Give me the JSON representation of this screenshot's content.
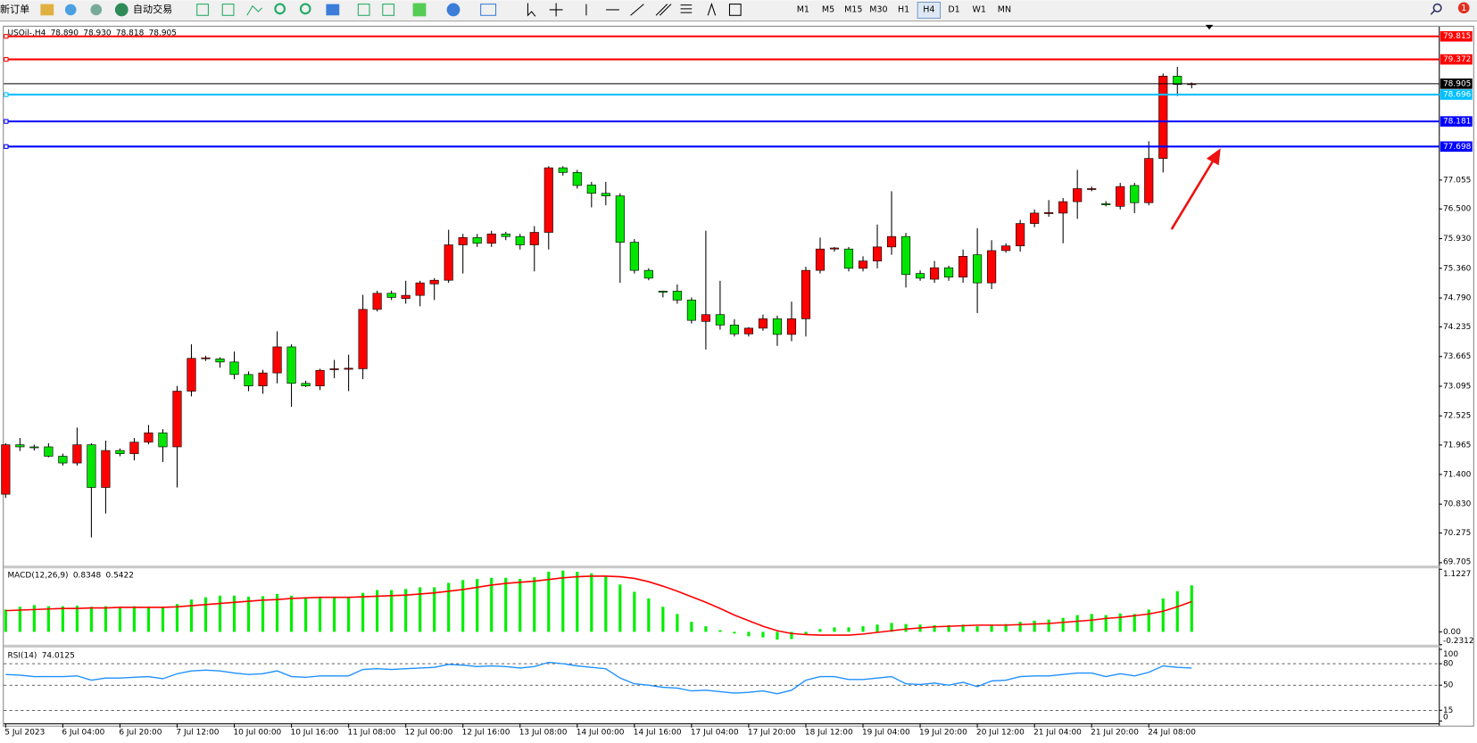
{
  "toolbar": {
    "buttons": [
      "新订单",
      "自动交易"
    ],
    "timeframes": [
      "M1",
      "M5",
      "M15",
      "M30",
      "H1",
      "H4",
      "D1",
      "W1",
      "MN"
    ],
    "active_timeframe": "H4",
    "badge": 1
  },
  "chart_data": [
    {
      "type": "candlestick",
      "title": "USOil-,H4",
      "header_values": [
        {
          "value": 78.89,
          "label": "78.890"
        },
        {
          "value": 78.93,
          "label": "78.930"
        },
        78.818,
        78.905
      ],
      "categories": [
        "5 Jul 2023",
        null,
        null,
        null,
        "6 Jul 04:00",
        null,
        null,
        null,
        "6 Jul 20:00",
        null,
        null,
        null,
        "7 Jul 12:00",
        null,
        null,
        null,
        "10 Jul 00:00",
        null,
        null,
        null,
        "10 Jul 16:00",
        null,
        null,
        null,
        "11 Jul 08:00",
        null,
        null,
        null,
        "12 Jul 00:00",
        null,
        null,
        null,
        "12 Jul 16:00",
        null,
        null,
        null,
        "13 Jul 08:00",
        null,
        null,
        null,
        "14 Jul 00:00",
        null,
        null,
        null,
        "14 Jul 16:00",
        null,
        null,
        null,
        "17 Jul 04:00",
        null,
        null,
        null,
        "17 Jul 20:00",
        null,
        null,
        null,
        "18 Jul 12:00",
        null,
        null,
        null,
        "19 Jul 04:00",
        null,
        null,
        null,
        "19 Jul 20:00",
        null,
        null,
        null,
        "20 Jul 12:00",
        null,
        null,
        null,
        "21 Jul 04:00",
        null,
        null,
        null,
        "21 Jul 20:00",
        null,
        null,
        null,
        "24 Jul 08:00",
        null,
        null,
        null
      ],
      "open": [
        71.02,
        71.97,
        71.93,
        71.93,
        71.75,
        71.62,
        71.97,
        71.15,
        71.86,
        71.8,
        72.02,
        72.2,
        71.93,
        73.0,
        73.63,
        73.62,
        73.56,
        73.32,
        73.1,
        73.35,
        73.85,
        73.15,
        73.1,
        73.42,
        73.42,
        73.43,
        74.57,
        74.88,
        74.78,
        74.84,
        75.06,
        75.13,
        75.81,
        75.95,
        75.84,
        76.02,
        75.97,
        75.81,
        76.05,
        77.29,
        77.2,
        76.96,
        76.8,
        76.75,
        75.86,
        75.32,
        74.92,
        74.92,
        74.75,
        74.34,
        74.47,
        74.27,
        74.1,
        74.21,
        74.39,
        74.09,
        74.39,
        75.32,
        75.73,
        75.73,
        75.36,
        75.5,
        75.77,
        75.97,
        75.26,
        75.15,
        75.37,
        75.19,
        75.62,
        75.08,
        75.7,
        75.79,
        76.22,
        76.41,
        76.42,
        76.64,
        76.88,
        76.6,
        76.55,
        76.95,
        76.62,
        77.47,
        79.05,
        78.89
      ],
      "high": [
        72.0,
        72.1,
        71.97,
        72.0,
        71.8,
        72.3,
        72.0,
        72.05,
        71.9,
        72.1,
        72.35,
        72.27,
        73.1,
        73.9,
        73.68,
        73.65,
        73.76,
        73.38,
        73.41,
        74.15,
        73.9,
        73.2,
        73.43,
        73.6,
        73.7,
        74.85,
        74.93,
        74.93,
        75.12,
        75.12,
        75.17,
        76.1,
        76.02,
        76.02,
        76.08,
        76.06,
        76.02,
        76.17,
        77.32,
        77.32,
        77.25,
        77.02,
        77.02,
        76.8,
        75.92,
        75.36,
        74.93,
        75.05,
        74.8,
        76.08,
        75.12,
        74.38,
        74.23,
        74.47,
        74.45,
        74.72,
        75.39,
        75.95,
        75.77,
        75.77,
        75.59,
        76.2,
        76.84,
        76.04,
        75.32,
        75.5,
        75.41,
        75.72,
        76.13,
        75.9,
        75.84,
        76.29,
        76.49,
        76.67,
        76.71,
        77.25,
        76.93,
        76.65,
        77.0,
        77.0,
        77.8,
        79.1,
        79.23,
        78.93
      ],
      "low": [
        70.95,
        71.85,
        71.86,
        71.73,
        71.57,
        71.57,
        70.19,
        70.65,
        71.75,
        71.67,
        71.98,
        71.64,
        71.15,
        72.9,
        73.58,
        73.45,
        73.23,
        73.0,
        72.95,
        73.15,
        72.7,
        73.08,
        73.02,
        73.25,
        73.0,
        73.23,
        74.53,
        74.75,
        74.68,
        74.63,
        74.75,
        75.08,
        75.26,
        75.77,
        75.77,
        75.9,
        75.72,
        75.3,
        75.72,
        77.14,
        76.89,
        76.53,
        76.57,
        75.08,
        75.26,
        75.13,
        74.8,
        74.68,
        74.3,
        73.8,
        74.18,
        74.05,
        74.05,
        74.16,
        73.87,
        73.96,
        74.05,
        75.26,
        75.68,
        75.3,
        75.3,
        75.36,
        75.62,
        74.99,
        75.12,
        75.08,
        75.12,
        75.08,
        74.5,
        74.96,
        75.66,
        75.68,
        76.15,
        76.35,
        75.84,
        76.31,
        76.84,
        76.55,
        76.49,
        76.42,
        76.57,
        77.2,
        78.67,
        78.818
      ],
      "close": [
        71.97,
        71.93,
        71.92,
        71.75,
        71.62,
        71.97,
        71.15,
        71.86,
        71.8,
        72.02,
        72.2,
        71.93,
        73.0,
        73.63,
        73.64,
        73.56,
        73.32,
        73.1,
        73.35,
        73.85,
        73.15,
        73.1,
        73.4,
        73.43,
        73.44,
        74.57,
        74.88,
        74.8,
        74.84,
        75.08,
        75.13,
        75.81,
        75.95,
        75.84,
        76.02,
        75.97,
        75.81,
        76.05,
        77.29,
        77.2,
        76.95,
        76.8,
        76.75,
        75.86,
        75.32,
        75.17,
        74.9,
        74.75,
        74.36,
        74.47,
        74.27,
        74.1,
        74.21,
        74.39,
        74.09,
        74.39,
        75.32,
        75.73,
        75.75,
        75.36,
        75.5,
        75.77,
        75.97,
        75.24,
        75.17,
        75.37,
        75.19,
        75.59,
        75.08,
        75.7,
        75.79,
        76.22,
        76.42,
        76.43,
        76.64,
        76.89,
        76.89,
        76.58,
        76.93,
        76.62,
        77.47,
        79.05,
        78.89,
        78.905
      ],
      "up_color": "#ff0000",
      "down_color": "#00e600",
      "ylim": [
        69.65,
        80.0
      ],
      "yticks": [
        77.055,
        {
          "value": 76.5,
          "label": "76.500"
        },
        {
          "value": 75.93,
          "label": "75.930"
        },
        {
          "value": 75.36,
          "label": "75.360"
        },
        {
          "value": 74.79,
          "label": "74.790"
        },
        74.235,
        73.665,
        73.095,
        72.525,
        71.965,
        {
          "value": 71.4,
          "label": "71.400"
        },
        {
          "value": 70.83,
          "label": "70.830"
        },
        70.275,
        69.705
      ],
      "grid": false,
      "levels": [
        {
          "value": 79.815,
          "color": "#ff0000"
        },
        {
          "value": 79.372,
          "color": "#ff0000"
        },
        {
          "value": 78.905,
          "color": "#000000"
        },
        {
          "value": 78.696,
          "color": "#00bfff"
        },
        {
          "value": 78.181,
          "color": "#0000ff"
        },
        {
          "value": 77.698,
          "color": "#0000ff"
        }
      ]
    },
    {
      "type": "macd",
      "title": "MACD(12,26,9)",
      "title_values": [
        0.8348,
        0.5422
      ],
      "histogram": {
        "color": "#00ee00",
        "values": [
          0.4,
          0.45,
          0.48,
          0.46,
          0.46,
          0.47,
          0.45,
          0.46,
          0.45,
          0.46,
          0.45,
          0.45,
          0.5,
          0.58,
          0.62,
          0.65,
          0.65,
          0.63,
          0.64,
          0.68,
          0.65,
          0.6,
          0.62,
          0.62,
          0.62,
          0.7,
          0.75,
          0.75,
          0.77,
          0.8,
          0.8,
          0.88,
          0.93,
          0.95,
          0.97,
          0.97,
          0.95,
          0.98,
          1.08,
          1.1,
          1.08,
          1.05,
          1.0,
          0.85,
          0.72,
          0.6,
          0.45,
          0.32,
          0.18,
          0.1,
          0.03,
          -0.03,
          -0.08,
          -0.1,
          -0.14,
          -0.13,
          -0.05,
          0.05,
          0.08,
          0.08,
          0.1,
          0.13,
          0.16,
          0.14,
          0.13,
          0.12,
          0.12,
          0.13,
          0.1,
          0.12,
          0.14,
          0.18,
          0.2,
          0.22,
          0.25,
          0.3,
          0.32,
          0.3,
          0.33,
          0.32,
          0.4,
          0.6,
          0.73,
          0.8348
        ]
      },
      "signal": {
        "color": "#ff0000",
        "values": [
          0.38,
          0.39,
          0.4,
          0.41,
          0.42,
          0.42,
          0.43,
          0.43,
          0.44,
          0.44,
          0.44,
          0.44,
          0.45,
          0.47,
          0.49,
          0.51,
          0.53,
          0.55,
          0.57,
          0.58,
          0.6,
          0.61,
          0.62,
          0.62,
          0.62,
          0.63,
          0.64,
          0.65,
          0.66,
          0.68,
          0.7,
          0.73,
          0.76,
          0.8,
          0.84,
          0.87,
          0.89,
          0.91,
          0.94,
          0.97,
          0.99,
          1.0,
          1.0,
          0.99,
          0.96,
          0.9,
          0.82,
          0.73,
          0.63,
          0.53,
          0.42,
          0.3,
          0.2,
          0.1,
          0.02,
          -0.03,
          -0.05,
          -0.06,
          -0.06,
          -0.06,
          -0.04,
          -0.01,
          0.02,
          0.05,
          0.07,
          0.09,
          0.1,
          0.11,
          0.12,
          0.12,
          0.12,
          0.13,
          0.14,
          0.15,
          0.17,
          0.19,
          0.21,
          0.24,
          0.26,
          0.29,
          0.32,
          0.37,
          0.45,
          0.5422
        ]
      },
      "ylim": [
        -0.2312,
        1.1227
      ],
      "yticks": [
        1.1227,
        {
          "value": 0,
          "label": "0.00"
        },
        -0.2312
      ]
    },
    {
      "type": "rsi",
      "title": "RSI(14)",
      "title_value": 74.0125,
      "color": "#1e90ff",
      "values": [
        65,
        64,
        62,
        62,
        62,
        63,
        57,
        60,
        60,
        61,
        62,
        59,
        66,
        70,
        71,
        70,
        67,
        65,
        66,
        70,
        62,
        61,
        63,
        63,
        63,
        72,
        73,
        72,
        73,
        74,
        75,
        79,
        78,
        76,
        77,
        76,
        74,
        76,
        82,
        80,
        77,
        75,
        73,
        60,
        52,
        50,
        47,
        46,
        42,
        43,
        41,
        39,
        40,
        42,
        38,
        43,
        57,
        62,
        62,
        58,
        58,
        60,
        62,
        52,
        51,
        53,
        50,
        54,
        48,
        56,
        57,
        62,
        63,
        63,
        65,
        67,
        67,
        62,
        66,
        63,
        68,
        77,
        75,
        74.0125
      ],
      "ylim": [
        0,
        100
      ],
      "yticks": [
        100,
        80,
        50,
        15,
        0
      ],
      "levels": [
        80,
        50,
        15
      ]
    }
  ]
}
